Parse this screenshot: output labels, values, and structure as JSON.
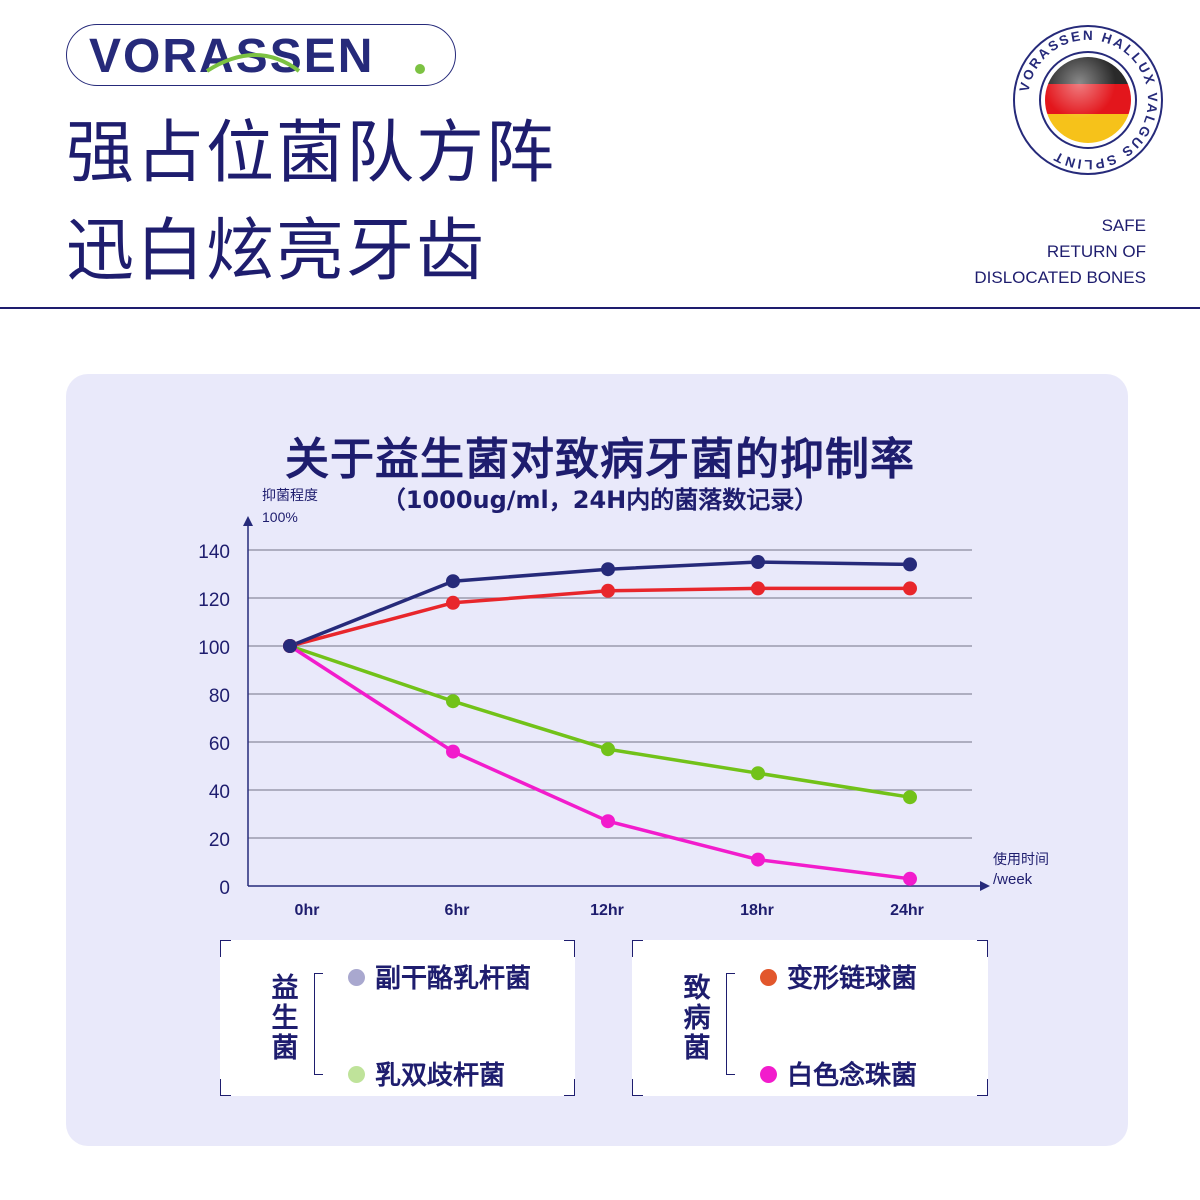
{
  "brand": {
    "name": "VORASSEN"
  },
  "headline": {
    "line1": "强占位菌队方阵",
    "line2": "迅白炫亮牙齿"
  },
  "seal": {
    "text": "VORASSEN HALLUX VALGUS SPLINT"
  },
  "tagline": {
    "line1": "SAFE",
    "line2": "RETURN OF",
    "line3": "DISLOCATED BONES"
  },
  "chart_data": {
    "type": "line",
    "title": "关于益生菌对致病牙菌的抑制率",
    "subtitle": "（1000ug/ml，24H内的菌落数记录）",
    "ylabel_line1": "抑菌程度",
    "ylabel_line2": "100%",
    "xlabel_line1": "使用时间",
    "xlabel_line2": "/week",
    "categories": [
      "0hr",
      "6hr",
      "12hr",
      "18hr",
      "24hr"
    ],
    "yticks": [
      0,
      20,
      40,
      60,
      80,
      100,
      120,
      140
    ],
    "ylim": [
      0,
      140
    ],
    "grid": true,
    "series": [
      {
        "key": "s1",
        "color": "#262a7a",
        "values": [
          100,
          127,
          132,
          135,
          134
        ]
      },
      {
        "key": "s2",
        "color": "#e8262b",
        "values": [
          100,
          118,
          123,
          124,
          124
        ]
      },
      {
        "key": "s3",
        "color": "#72c219",
        "values": [
          100,
          77,
          57,
          47,
          37
        ]
      },
      {
        "key": "s4",
        "color": "#f21ccc",
        "values": [
          100,
          56,
          27,
          11,
          3
        ]
      }
    ]
  },
  "legend": {
    "probiotic": {
      "group_label": "益生菌",
      "items": [
        {
          "label": "副干酪乳杆菌",
          "color": "#a9a8cf"
        },
        {
          "label": "乳双歧杆菌",
          "color": "#bfe39a"
        }
      ]
    },
    "pathogen": {
      "group_label": "致病菌",
      "items": [
        {
          "label": "变形链球菌",
          "color": "#e2572c"
        },
        {
          "label": "白色念珠菌",
          "color": "#f21ccc"
        }
      ]
    }
  }
}
